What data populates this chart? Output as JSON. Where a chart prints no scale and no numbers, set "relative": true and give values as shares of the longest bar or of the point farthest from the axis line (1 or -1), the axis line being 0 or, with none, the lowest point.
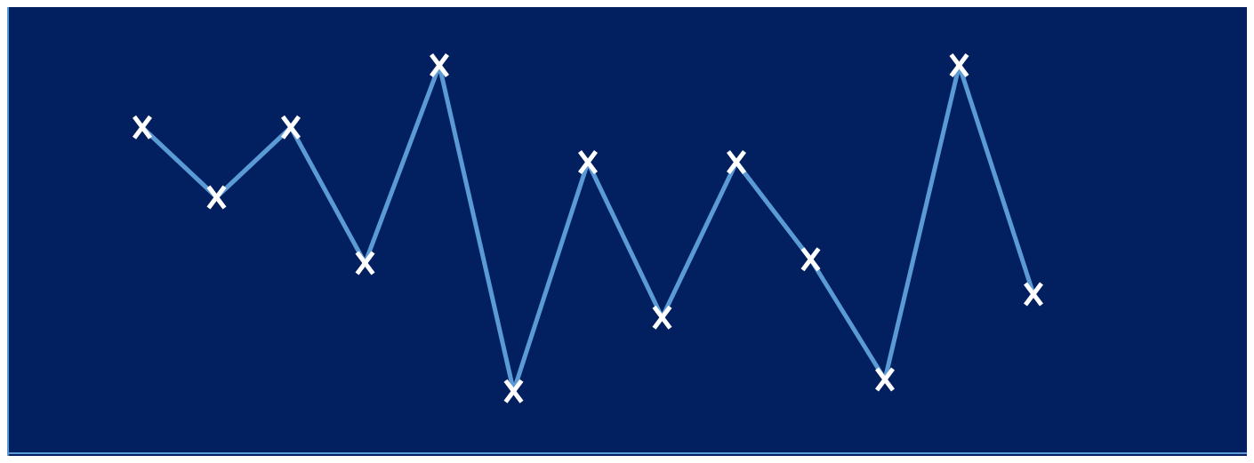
{
  "chart_data": {
    "type": "line",
    "relative": true,
    "categories": [
      null,
      null,
      null,
      null,
      null,
      null,
      null,
      null,
      null,
      null,
      null,
      null,
      null
    ],
    "series": [
      {
        "color": "#5b9bd5",
        "values": [
          0.84,
          0.66,
          0.84,
          0.49,
          1,
          0.16,
          0.75,
          0.35,
          0.75,
          0.5,
          0.19,
          1,
          0.41
        ]
      }
    ],
    "marker": "cross",
    "grid": false
  }
}
